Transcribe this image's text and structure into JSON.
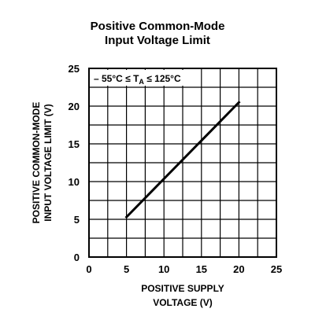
{
  "chart_data": {
    "type": "line",
    "title_line1": "Positive Common-Mode",
    "title_line2": "Input Voltage Limit",
    "xlabel_line1": "POSITIVE SUPPLY",
    "xlabel_line2": "VOLTAGE (V)",
    "ylabel_line1": "POSITIVE COMMON-MODE",
    "ylabel_line2": "INPUT VOLTAGE LIMIT (V)",
    "annotation": {
      "prefix": "– 55°C ≤ T",
      "subscript": "A",
      "suffix": " ≤ 125°C"
    },
    "xlim": [
      0,
      25
    ],
    "ylim": [
      0,
      25
    ],
    "x_ticks": [
      0,
      5,
      10,
      15,
      20,
      25
    ],
    "y_ticks": [
      0,
      5,
      10,
      15,
      20,
      25
    ],
    "grid": true,
    "series": [
      {
        "x": [
          5,
          20
        ],
        "values": [
          5.3,
          20.5
        ]
      }
    ]
  }
}
